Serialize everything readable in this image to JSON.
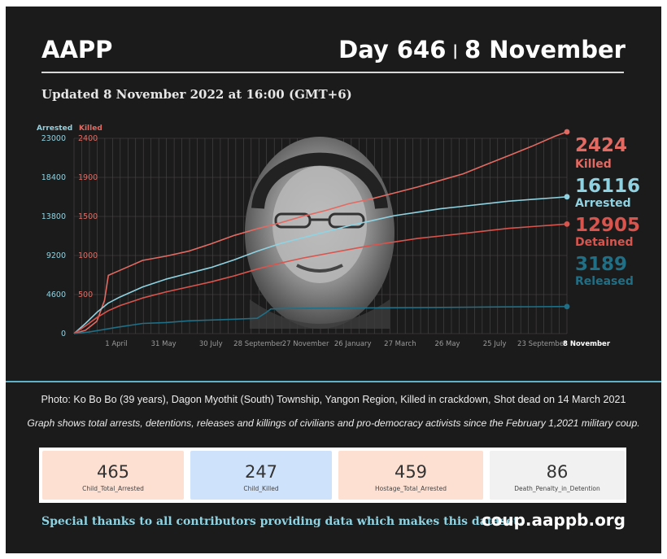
{
  "header": {
    "org": "AAPP",
    "day": "Day 646",
    "separator": "|",
    "date": "8 November",
    "updated": "Updated 8 November 2022 at 16:00 (GMT+6)"
  },
  "colors": {
    "killed": "#e36a62",
    "arrested": "#8fd3e2",
    "detained": "#d9544d",
    "released": "#1f6f86",
    "background": "#1c1b1b",
    "divider": "#5fb2c7"
  },
  "photo": {
    "icon": "portrait-photo"
  },
  "chart_data": {
    "type": "line",
    "axes": {
      "left_title": "Arrested",
      "left_ticks": [
        "23000",
        "18400",
        "13800",
        "9200",
        "4600",
        "0"
      ],
      "left_range": [
        0,
        23000
      ],
      "right_title": "Killed",
      "right_ticks": [
        "2400",
        "1900",
        "1500",
        "1000",
        "500"
      ],
      "right_range": [
        0,
        2424
      ]
    },
    "x_labels": [
      "1 April",
      "31 May",
      "30 July",
      "28 September",
      "27 November",
      "26 January",
      "27 March",
      "26 May",
      "25 July",
      "23 September"
    ],
    "x_end_label": "8 November",
    "x_range_days": [
      0,
      646
    ],
    "grid": true,
    "series": [
      {
        "name": "Killed",
        "key": "killed",
        "axis": "right",
        "end_value": "2424",
        "end_label": "Killed",
        "x": [
          0,
          15,
          30,
          40,
          45,
          55,
          70,
          90,
          120,
          150,
          180,
          210,
          240,
          270,
          300,
          330,
          360,
          390,
          420,
          450,
          480,
          510,
          540,
          570,
          600,
          630,
          646
        ],
        "y": [
          0,
          40,
          150,
          400,
          700,
          740,
          800,
          880,
          930,
          990,
          1080,
          1180,
          1260,
          1330,
          1410,
          1480,
          1560,
          1620,
          1690,
          1760,
          1840,
          1920,
          2030,
          2140,
          2250,
          2370,
          2424
        ]
      },
      {
        "name": "Arrested",
        "key": "arrested",
        "axis": "left",
        "end_value": "16116",
        "end_label": "Arrested",
        "x": [
          0,
          15,
          30,
          45,
          60,
          90,
          120,
          150,
          180,
          210,
          240,
          270,
          300,
          330,
          360,
          390,
          420,
          450,
          480,
          510,
          540,
          570,
          600,
          630,
          646
        ],
        "y": [
          0,
          1200,
          2500,
          3600,
          4300,
          5500,
          6400,
          7100,
          7800,
          8700,
          9700,
          10600,
          11300,
          12000,
          12700,
          13300,
          13900,
          14300,
          14700,
          15000,
          15300,
          15600,
          15800,
          16000,
          16116
        ]
      },
      {
        "name": "Detained",
        "key": "detained",
        "axis": "left",
        "end_value": "12905",
        "end_label": "Detained",
        "x": [
          0,
          15,
          30,
          45,
          60,
          90,
          120,
          150,
          180,
          210,
          240,
          270,
          300,
          330,
          360,
          390,
          420,
          450,
          480,
          510,
          540,
          570,
          600,
          630,
          646
        ],
        "y": [
          0,
          900,
          1900,
          2700,
          3300,
          4200,
          4900,
          5500,
          6100,
          6800,
          7600,
          8300,
          8900,
          9400,
          9900,
          10400,
          10800,
          11200,
          11500,
          11800,
          12100,
          12400,
          12600,
          12800,
          12905
        ]
      },
      {
        "name": "Released",
        "key": "released",
        "axis": "left",
        "end_value": "3189",
        "end_label": "Released",
        "x": [
          0,
          20,
          40,
          60,
          90,
          120,
          150,
          180,
          210,
          240,
          252,
          258,
          280,
          320,
          360,
          400,
          440,
          480,
          520,
          560,
          600,
          646
        ],
        "y": [
          0,
          200,
          500,
          800,
          1200,
          1300,
          1500,
          1600,
          1700,
          1800,
          2500,
          2900,
          2950,
          3000,
          3020,
          3040,
          3060,
          3090,
          3110,
          3140,
          3160,
          3189
        ]
      }
    ]
  },
  "caption": "Photo: Ko Bo Bo (39 years), Dagon Myothit (South) Township, Yangon Region, Killed in crackdown, Shot dead on 14 March 2021",
  "note": "Graph shows total arrests, detentions, releases and killings of civilians and pro-democracy activists since the February 1,2021 military coup.",
  "stats": [
    {
      "value": "465",
      "label": "Child_Total_Arrested",
      "color": "#fde0d2"
    },
    {
      "value": "247",
      "label": "Child_Killed",
      "color": "#cfe2fb"
    },
    {
      "value": "459",
      "label": "Hostage_Total_Arrested",
      "color": "#fde0d2"
    },
    {
      "value": "86",
      "label": "Death_Penalty_in_Detention",
      "color": "#f1f1f1"
    }
  ],
  "footer": {
    "thanks": "Special thanks to all contributors providing data which makes this dataset.",
    "site": "coup.aappb.org"
  }
}
